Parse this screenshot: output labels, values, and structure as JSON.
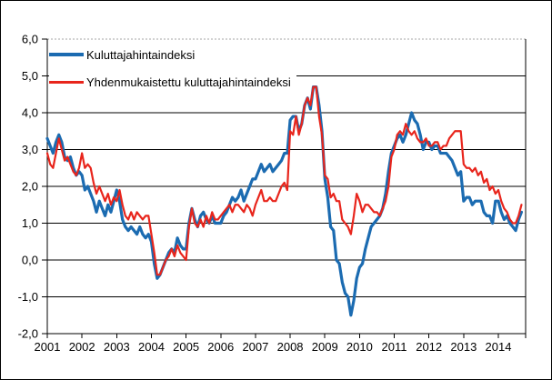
{
  "canvas": {
    "background": "#ffffff",
    "border_color": "#000000"
  },
  "chart_data": {
    "type": "line",
    "title": "",
    "frequency": "monthly",
    "x_start": "2001-01",
    "x_end": "2014-09",
    "grid": "horizontal",
    "legend_position": "top-left",
    "ylim": [
      -2.0,
      6.0
    ],
    "y_tick_step": 1.0,
    "y_tick_labels": [
      "6,0",
      "5,0",
      "4,0",
      "3,0",
      "2,0",
      "1,0",
      "0,0",
      "-1,0",
      "-2,0"
    ],
    "y_tick_values": [
      6,
      5,
      4,
      3,
      2,
      1,
      0,
      -1,
      -2
    ],
    "x_tick_labels": [
      "2001",
      "2002",
      "2003",
      "2004",
      "2005",
      "2006",
      "2007",
      "2008",
      "2009",
      "2010",
      "2011",
      "2012",
      "2013",
      "2014"
    ],
    "gridline_color": "#000000",
    "top_gridline_color": "#a6a6a6",
    "series": [
      {
        "id": "cpi",
        "name": "Kuluttajahintaindeksi",
        "color": "#1b6bb1",
        "line_width": 3.2,
        "values": [
          3.3,
          3.1,
          2.9,
          3.2,
          3.4,
          3.2,
          2.8,
          2.7,
          2.8,
          2.5,
          2.3,
          2.4,
          2.3,
          1.9,
          2.0,
          1.8,
          1.6,
          1.3,
          1.6,
          1.4,
          1.2,
          1.5,
          1.3,
          1.6,
          1.9,
          1.6,
          1.1,
          0.9,
          0.8,
          0.9,
          0.8,
          0.7,
          0.9,
          0.7,
          0.6,
          0.7,
          0.5,
          -0.1,
          -0.5,
          -0.4,
          -0.2,
          0.0,
          0.2,
          0.3,
          0.2,
          0.6,
          0.4,
          0.3,
          0.3,
          1.0,
          1.4,
          1.1,
          0.9,
          1.2,
          1.3,
          1.1,
          1.0,
          1.2,
          1.0,
          1.0,
          1.0,
          1.2,
          1.3,
          1.5,
          1.7,
          1.6,
          1.7,
          1.9,
          1.6,
          1.8,
          2.0,
          2.2,
          2.2,
          2.4,
          2.6,
          2.4,
          2.5,
          2.6,
          2.4,
          2.5,
          2.6,
          2.7,
          2.9,
          2.9,
          3.8,
          3.9,
          3.9,
          3.5,
          3.7,
          4.2,
          4.4,
          4.1,
          4.7,
          4.7,
          4.2,
          3.5,
          2.2,
          1.7,
          0.9,
          0.8,
          0.0,
          -0.1,
          -0.6,
          -0.9,
          -1.0,
          -1.5,
          -1.1,
          -0.5,
          -0.2,
          -0.1,
          0.3,
          0.6,
          0.9,
          1.0,
          1.1,
          1.2,
          1.4,
          1.8,
          2.4,
          2.9,
          3.1,
          3.3,
          3.4,
          3.2,
          3.4,
          3.7,
          4.0,
          3.8,
          3.7,
          3.4,
          3.0,
          3.2,
          3.2,
          3.0,
          3.1,
          3.1,
          2.9,
          2.9,
          2.9,
          2.8,
          2.7,
          2.5,
          2.3,
          2.4,
          1.6,
          1.7,
          1.7,
          1.5,
          1.6,
          1.6,
          1.6,
          1.3,
          1.2,
          1.2,
          1.0,
          1.6,
          1.6,
          1.3,
          1.1,
          1.2,
          1.0,
          0.9,
          0.8,
          1.1,
          1.3
        ]
      },
      {
        "id": "hicp",
        "name": "Yhdenmukaistettu kuluttajahintaindeksi",
        "color": "#e8251c",
        "line_width": 2.2,
        "values": [
          2.9,
          2.6,
          2.5,
          2.9,
          3.3,
          3.0,
          2.7,
          2.8,
          2.6,
          2.4,
          2.3,
          2.5,
          2.9,
          2.5,
          2.6,
          2.5,
          2.1,
          1.8,
          2.0,
          1.8,
          1.6,
          1.8,
          1.5,
          1.7,
          1.6,
          1.9,
          1.5,
          1.2,
          1.1,
          1.3,
          1.1,
          1.3,
          1.2,
          1.1,
          1.2,
          1.2,
          0.7,
          0.2,
          -0.4,
          -0.4,
          -0.2,
          0.0,
          0.1,
          0.3,
          0.1,
          0.4,
          0.2,
          0.1,
          0.0,
          0.9,
          1.4,
          1.0,
          0.9,
          1.1,
          0.9,
          1.2,
          1.0,
          1.3,
          1.1,
          1.1,
          1.2,
          1.3,
          1.4,
          1.5,
          1.3,
          1.5,
          1.5,
          1.4,
          1.3,
          1.5,
          1.4,
          1.2,
          1.5,
          1.7,
          1.9,
          1.6,
          1.6,
          1.7,
          1.6,
          1.6,
          1.8,
          2.0,
          2.1,
          1.9,
          3.5,
          3.4,
          3.9,
          3.4,
          3.7,
          4.2,
          4.4,
          4.2,
          4.7,
          4.7,
          3.9,
          3.4,
          2.3,
          2.2,
          1.7,
          1.8,
          1.6,
          1.6,
          1.1,
          1.0,
          0.9,
          0.7,
          1.2,
          1.8,
          1.6,
          1.3,
          1.5,
          1.5,
          1.4,
          1.3,
          1.3,
          1.2,
          1.4,
          1.6,
          2.0,
          2.8,
          3.0,
          3.4,
          3.5,
          3.4,
          3.7,
          3.5,
          3.4,
          3.5,
          3.3,
          3.2,
          3.2,
          3.3,
          3.1,
          3.1,
          3.2,
          3.2,
          3.0,
          3.1,
          3.1,
          3.3,
          3.4,
          3.5,
          3.5,
          3.5,
          2.6,
          2.5,
          2.5,
          2.4,
          2.5,
          2.3,
          2.4,
          2.1,
          2.2,
          1.9,
          2.0,
          1.8,
          1.9,
          1.6,
          1.4,
          1.3,
          1.1,
          1.0,
          1.0,
          1.2,
          1.5
        ]
      }
    ]
  }
}
